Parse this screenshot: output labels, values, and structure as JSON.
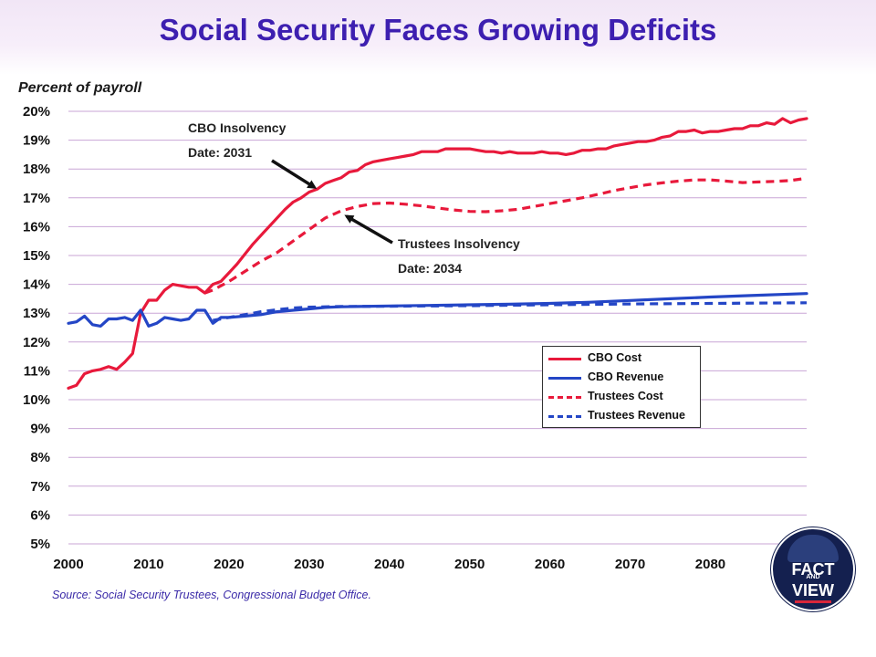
{
  "page": {
    "title": "Social Security Faces Growing Deficits",
    "source": "Source: Social Security Trustees, Congressional Budget Office.",
    "logo": {
      "line1": "FACT",
      "line2": "AND",
      "line3": "VIEW"
    }
  },
  "colors": {
    "red": "#e8193b",
    "blue": "#2446c6",
    "title": "#3d1fb0"
  },
  "chart_data": {
    "type": "line",
    "title": "Social Security Faces Growing Deficits",
    "ylabel": "Percent of payroll",
    "xlabel": "",
    "xlim": [
      2000,
      2092
    ],
    "ylim": [
      5,
      20
    ],
    "grid": true,
    "x_ticks": [
      "2000",
      "2010",
      "2020",
      "2030",
      "2040",
      "2050",
      "2060",
      "2070",
      "2080"
    ],
    "y_ticks": [
      "5%",
      "6%",
      "7%",
      "8%",
      "9%",
      "10%",
      "11%",
      "12%",
      "13%",
      "14%",
      "15%",
      "16%",
      "17%",
      "18%",
      "19%",
      "20%"
    ],
    "legend_position": "right-center",
    "series": [
      {
        "name": "CBO Cost",
        "style": "solid",
        "color": "#e8193b",
        "points": [
          [
            2000,
            10.4
          ],
          [
            2001,
            10.5
          ],
          [
            2002,
            10.9
          ],
          [
            2003,
            11.0
          ],
          [
            2004,
            11.05
          ],
          [
            2005,
            11.15
          ],
          [
            2006,
            11.05
          ],
          [
            2007,
            11.3
          ],
          [
            2008,
            11.6
          ],
          [
            2009,
            13.0
          ],
          [
            2010,
            13.45
          ],
          [
            2011,
            13.45
          ],
          [
            2012,
            13.8
          ],
          [
            2013,
            14.0
          ],
          [
            2014,
            13.95
          ],
          [
            2015,
            13.9
          ],
          [
            2016,
            13.9
          ],
          [
            2017,
            13.7
          ],
          [
            2018,
            14.0
          ],
          [
            2019,
            14.1
          ],
          [
            2020,
            14.4
          ],
          [
            2021,
            14.7
          ],
          [
            2022,
            15.05
          ],
          [
            2023,
            15.4
          ],
          [
            2024,
            15.7
          ],
          [
            2025,
            16.0
          ],
          [
            2026,
            16.3
          ],
          [
            2027,
            16.6
          ],
          [
            2028,
            16.85
          ],
          [
            2029,
            17.0
          ],
          [
            2030,
            17.2
          ],
          [
            2031,
            17.3
          ],
          [
            2032,
            17.5
          ],
          [
            2033,
            17.6
          ],
          [
            2034,
            17.7
          ],
          [
            2035,
            17.9
          ],
          [
            2036,
            17.95
          ],
          [
            2037,
            18.15
          ],
          [
            2038,
            18.25
          ],
          [
            2039,
            18.3
          ],
          [
            2040,
            18.35
          ],
          [
            2041,
            18.4
          ],
          [
            2042,
            18.45
          ],
          [
            2043,
            18.5
          ],
          [
            2044,
            18.6
          ],
          [
            2045,
            18.6
          ],
          [
            2046,
            18.6
          ],
          [
            2047,
            18.7
          ],
          [
            2048,
            18.7
          ],
          [
            2049,
            18.7
          ],
          [
            2050,
            18.7
          ],
          [
            2051,
            18.65
          ],
          [
            2052,
            18.6
          ],
          [
            2053,
            18.6
          ],
          [
            2054,
            18.55
          ],
          [
            2055,
            18.6
          ],
          [
            2056,
            18.55
          ],
          [
            2057,
            18.55
          ],
          [
            2058,
            18.55
          ],
          [
            2059,
            18.6
          ],
          [
            2060,
            18.55
          ],
          [
            2061,
            18.55
          ],
          [
            2062,
            18.5
          ],
          [
            2063,
            18.55
          ],
          [
            2064,
            18.65
          ],
          [
            2065,
            18.65
          ],
          [
            2066,
            18.7
          ],
          [
            2067,
            18.7
          ],
          [
            2068,
            18.8
          ],
          [
            2069,
            18.85
          ],
          [
            2070,
            18.9
          ],
          [
            2071,
            18.95
          ],
          [
            2072,
            18.95
          ],
          [
            2073,
            19.0
          ],
          [
            2074,
            19.1
          ],
          [
            2075,
            19.15
          ],
          [
            2076,
            19.3
          ],
          [
            2077,
            19.3
          ],
          [
            2078,
            19.35
          ],
          [
            2079,
            19.25
          ],
          [
            2080,
            19.3
          ],
          [
            2081,
            19.3
          ],
          [
            2082,
            19.35
          ],
          [
            2083,
            19.4
          ],
          [
            2084,
            19.4
          ],
          [
            2085,
            19.5
          ],
          [
            2086,
            19.5
          ],
          [
            2087,
            19.6
          ],
          [
            2088,
            19.55
          ],
          [
            2089,
            19.75
          ],
          [
            2090,
            19.6
          ],
          [
            2091,
            19.7
          ],
          [
            2092,
            19.75
          ]
        ]
      },
      {
        "name": "CBO Revenue",
        "style": "solid",
        "color": "#2446c6",
        "points": [
          [
            2000,
            12.65
          ],
          [
            2001,
            12.7
          ],
          [
            2002,
            12.9
          ],
          [
            2003,
            12.6
          ],
          [
            2004,
            12.55
          ],
          [
            2005,
            12.8
          ],
          [
            2006,
            12.8
          ],
          [
            2007,
            12.85
          ],
          [
            2008,
            12.75
          ],
          [
            2009,
            13.1
          ],
          [
            2010,
            12.55
          ],
          [
            2011,
            12.65
          ],
          [
            2012,
            12.85
          ],
          [
            2013,
            12.8
          ],
          [
            2014,
            12.75
          ],
          [
            2015,
            12.8
          ],
          [
            2016,
            13.1
          ],
          [
            2017,
            13.1
          ],
          [
            2018,
            12.65
          ],
          [
            2019,
            12.85
          ],
          [
            2020,
            12.85
          ],
          [
            2022,
            12.9
          ],
          [
            2024,
            12.95
          ],
          [
            2026,
            13.05
          ],
          [
            2028,
            13.1
          ],
          [
            2030,
            13.15
          ],
          [
            2032,
            13.2
          ],
          [
            2034,
            13.22
          ],
          [
            2036,
            13.23
          ],
          [
            2040,
            13.25
          ],
          [
            2045,
            13.27
          ],
          [
            2050,
            13.29
          ],
          [
            2055,
            13.31
          ],
          [
            2060,
            13.34
          ],
          [
            2065,
            13.38
          ],
          [
            2070,
            13.44
          ],
          [
            2075,
            13.5
          ],
          [
            2080,
            13.56
          ],
          [
            2085,
            13.61
          ],
          [
            2090,
            13.66
          ],
          [
            2092,
            13.68
          ]
        ]
      },
      {
        "name": "Trustees Cost",
        "style": "dashed",
        "color": "#e8193b",
        "points": [
          [
            2017,
            13.7
          ],
          [
            2018,
            13.8
          ],
          [
            2019,
            13.95
          ],
          [
            2020,
            14.1
          ],
          [
            2022,
            14.45
          ],
          [
            2024,
            14.8
          ],
          [
            2026,
            15.1
          ],
          [
            2028,
            15.5
          ],
          [
            2030,
            15.9
          ],
          [
            2032,
            16.3
          ],
          [
            2034,
            16.55
          ],
          [
            2036,
            16.7
          ],
          [
            2038,
            16.8
          ],
          [
            2040,
            16.82
          ],
          [
            2042,
            16.78
          ],
          [
            2044,
            16.72
          ],
          [
            2046,
            16.65
          ],
          [
            2048,
            16.58
          ],
          [
            2050,
            16.53
          ],
          [
            2052,
            16.52
          ],
          [
            2054,
            16.55
          ],
          [
            2056,
            16.6
          ],
          [
            2058,
            16.7
          ],
          [
            2060,
            16.8
          ],
          [
            2062,
            16.9
          ],
          [
            2064,
            17.0
          ],
          [
            2066,
            17.12
          ],
          [
            2068,
            17.25
          ],
          [
            2070,
            17.35
          ],
          [
            2072,
            17.45
          ],
          [
            2074,
            17.52
          ],
          [
            2076,
            17.58
          ],
          [
            2078,
            17.62
          ],
          [
            2080,
            17.62
          ],
          [
            2082,
            17.58
          ],
          [
            2084,
            17.53
          ],
          [
            2086,
            17.55
          ],
          [
            2088,
            17.57
          ],
          [
            2090,
            17.6
          ],
          [
            2092,
            17.68
          ]
        ]
      },
      {
        "name": "Trustees Revenue",
        "style": "dashed",
        "color": "#2446c6",
        "points": [
          [
            2018,
            12.75
          ],
          [
            2020,
            12.85
          ],
          [
            2022,
            12.95
          ],
          [
            2024,
            13.05
          ],
          [
            2026,
            13.12
          ],
          [
            2028,
            13.18
          ],
          [
            2030,
            13.21
          ],
          [
            2034,
            13.23
          ],
          [
            2040,
            13.24
          ],
          [
            2050,
            13.26
          ],
          [
            2060,
            13.29
          ],
          [
            2070,
            13.32
          ],
          [
            2080,
            13.34
          ],
          [
            2092,
            13.36
          ]
        ]
      }
    ],
    "annotations": [
      {
        "id": "cbo",
        "lines": [
          "CBO Insolvency",
          "Date: 2031"
        ],
        "arrow_to": [
          2031,
          17.3
        ]
      },
      {
        "id": "trustees",
        "lines": [
          "Trustees Insolvency",
          "Date: 2034"
        ],
        "arrow_to": [
          2034,
          16.55
        ]
      }
    ]
  }
}
